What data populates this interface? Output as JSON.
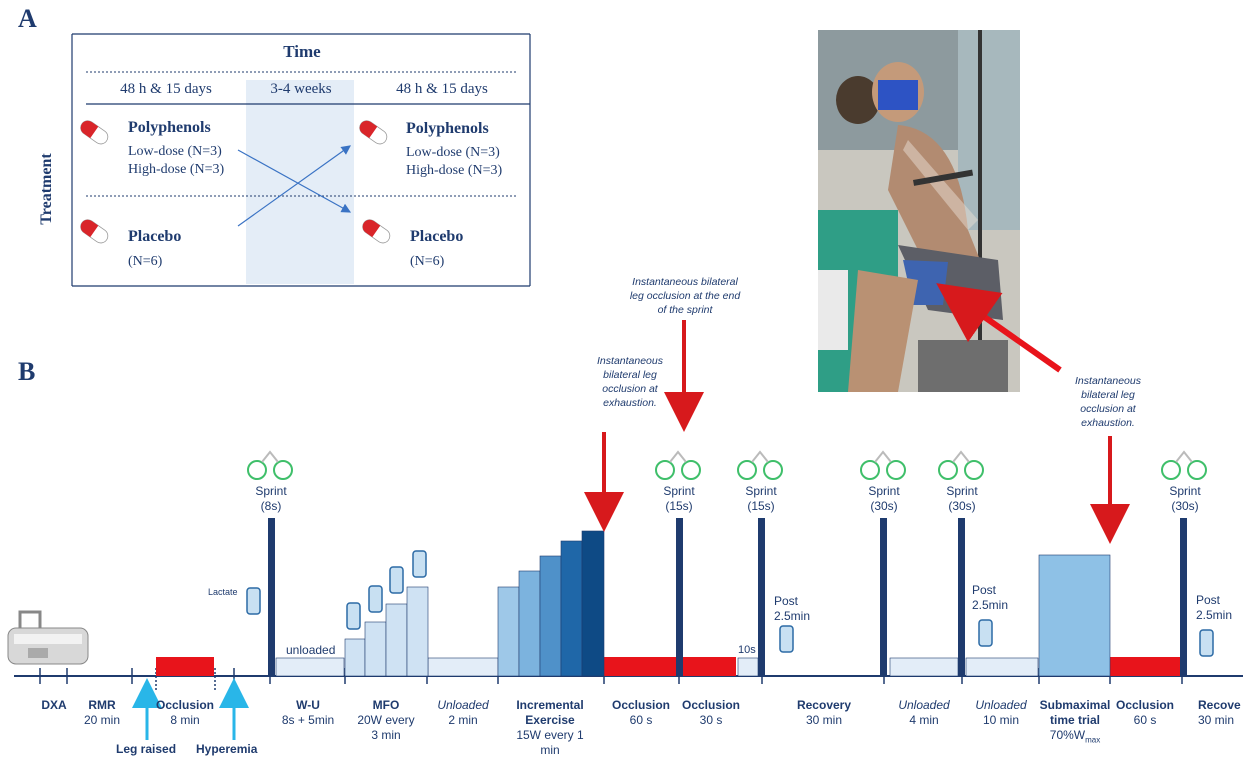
{
  "panel_a": {
    "label": "A",
    "time_header": "Time",
    "treatment_label": "Treatment",
    "periods": [
      "48 h & 15 days",
      "3-4 weeks",
      "48 h & 15 days"
    ],
    "left": {
      "poly_title": "Polyphenols",
      "poly_low": "Low-dose (N=3)",
      "poly_high": "High-dose (N=3)",
      "placebo_title": "Placebo",
      "placebo_n": "(N=6)"
    },
    "right": {
      "poly_title": "Polyphenols",
      "poly_low": "Low-dose (N=3)",
      "poly_high": "High-dose (N=3)",
      "placebo_title": "Placebo",
      "placebo_n": "(N=6)"
    }
  },
  "panel_b": {
    "label": "B",
    "lactate_label": "Lactate",
    "unloaded_bar_label": "unloaded",
    "ten_s_label": "10s",
    "sprints": [
      {
        "line1": "Sprint",
        "line2": "(8s)"
      },
      {
        "line1": "Sprint",
        "line2": "(15s)"
      },
      {
        "line1": "Sprint",
        "line2": "(15s)"
      },
      {
        "line1": "Sprint",
        "line2": "(30s)"
      },
      {
        "line1": "Sprint",
        "line2": "(30s)"
      },
      {
        "line1": "Sprint",
        "line2": "(30s)"
      }
    ],
    "post_labels": [
      {
        "line1": "Post",
        "line2": "2.5min"
      },
      {
        "line1": "Post",
        "line2": "2.5min"
      },
      {
        "line1": "Post",
        "line2": "2.5min"
      }
    ],
    "annotations": {
      "occl_exhaustion_1": [
        "Instantaneous",
        "bilateral leg",
        "occlusion at",
        "exhaustion."
      ],
      "occl_end_sprint": [
        "Instantaneous bilateral",
        "leg occlusion at the end",
        "of the sprint"
      ],
      "occl_exhaustion_2": [
        "Instantaneous",
        "bilateral leg",
        "occlusion at",
        "exhaustion."
      ]
    },
    "timeline": [
      {
        "title": "DXA",
        "lines": []
      },
      {
        "title": "RMR",
        "lines": [
          "20 min"
        ]
      },
      {
        "title": "Occlusion",
        "lines": [
          "8 min"
        ]
      },
      {
        "title": "W-U",
        "lines": [
          "8s + 5min"
        ]
      },
      {
        "title": "MFO",
        "lines": [
          "20W every",
          "3 min"
        ]
      },
      {
        "title": "Unloaded",
        "lines": [
          "2 min"
        ]
      },
      {
        "title": "Incremental",
        "lines": [
          "Exercise",
          "15W every 1",
          "min"
        ]
      },
      {
        "title": "Occlusion",
        "lines": [
          "60 s"
        ]
      },
      {
        "title": "Occlusion",
        "lines": [
          "30 s"
        ]
      },
      {
        "title": "Recovery",
        "lines": [
          "30 min"
        ]
      },
      {
        "title": "Unloaded",
        "lines": [
          "4 min"
        ]
      },
      {
        "title": "Unloaded",
        "lines": [
          "10 min"
        ]
      },
      {
        "title": "Submaximal",
        "lines": [
          "time trial",
          "70%W"
        ],
        "sub": "max"
      },
      {
        "title": "Occlusion",
        "lines": [
          "60 s"
        ]
      },
      {
        "title": "Recove",
        "lines": [
          "30 min"
        ]
      }
    ],
    "leg_raised": "Leg raised",
    "hyperemia": "Hyperemia"
  },
  "colors": {
    "navy": "#1f3b6e",
    "occlusion_red": "#e8141b",
    "arrow_red": "#d7191c",
    "light_blue": "#dce9f6",
    "cyan_arrow": "#29b6e8",
    "cyclist_green": "#3fbf6a"
  }
}
